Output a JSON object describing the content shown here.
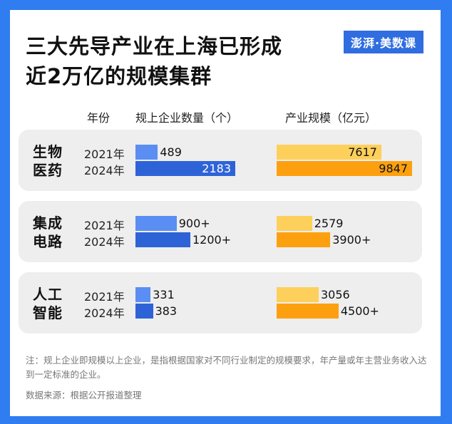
{
  "title_line1": "三大先导产业在上海已形成",
  "title_line2": "近2万亿的规模集群",
  "logo_text": "澎湃·美数课",
  "headers": {
    "year": "年份",
    "enterprises": "规上企业数量（个）",
    "scale": "产业规模（亿元）"
  },
  "colors": {
    "enterprise_2021": "#5a8ef2",
    "enterprise_2024": "#2e63d8",
    "scale_2021": "#fdd05b",
    "scale_2024": "#fda00f",
    "panel_bg": "#eeeeee",
    "frame": "#2f7df0"
  },
  "chart_data": {
    "type": "bar",
    "categories": [
      "生物医药",
      "集成电路",
      "人工智能"
    ],
    "category_lines": [
      [
        "生物",
        "医药"
      ],
      [
        "集成",
        "电路"
      ],
      [
        "人工",
        "智能"
      ]
    ],
    "years": [
      "2021年",
      "2024年"
    ],
    "series": [
      {
        "name": "规上企业数量（个）",
        "values_2021": [
          489,
          900,
          331
        ],
        "values_2024": [
          2183,
          1200,
          383
        ],
        "labels_2021": [
          "489",
          "900+",
          "331"
        ],
        "labels_2024": [
          "2183",
          "1200+",
          "383"
        ]
      },
      {
        "name": "产业规模（亿元）",
        "values_2021": [
          7617,
          2579,
          3056
        ],
        "values_2024": [
          9847,
          3900,
          4500
        ],
        "labels_2021": [
          "7617",
          "2579",
          "3056"
        ],
        "labels_2024": [
          "9847",
          "3900+",
          "4500+"
        ]
      }
    ]
  },
  "note": "注：规上企业即规模以上企业，是指根据国家对不同行业制定的规模要求，年产量或年主营业务收入达到一定标准的企业。",
  "source": "数据来源：根据公开报道整理"
}
